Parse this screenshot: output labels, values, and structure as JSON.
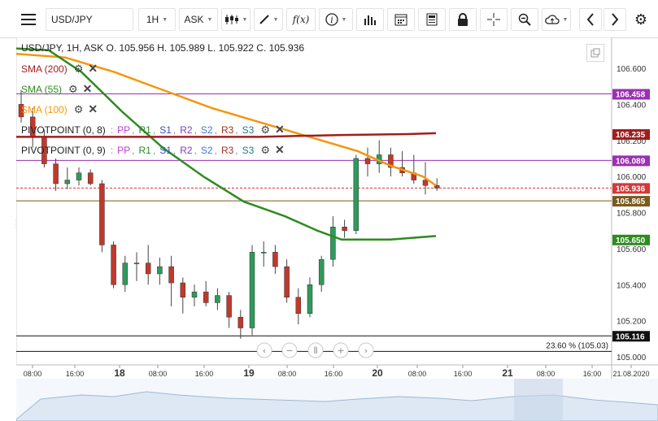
{
  "toolbar": {
    "symbol": "USD/JPY",
    "timeframe": "1H",
    "price_type": "ASK",
    "function_label": "f(x)",
    "icons": [
      "menu-icon",
      "chart-type-icon",
      "draw-icon",
      "indicator-icon",
      "info-icon",
      "volume-icon",
      "calendar-icon",
      "calculator-icon",
      "lock-icon",
      "crosshair-icon",
      "zoom-icon",
      "cloud-upload-icon",
      "arrow-left-icon",
      "arrow-right-icon",
      "gear-icon"
    ]
  },
  "ohlc": "USD/JPY, 1H, ASK   O. 105.956 H. 105.989 L. 105.922 C. 105.936",
  "indicators": [
    {
      "label": "SMA (200)",
      "color": "#a11d1d"
    },
    {
      "label": "SMA (55)",
      "color": "#2e8b1e"
    },
    {
      "label": "SMA (100)",
      "color": "#f4960c"
    }
  ],
  "pivots": [
    {
      "label": "PIVOTPOINT (0, 8)",
      "items": [
        "PP",
        "R1",
        "S1",
        "R2",
        "S2",
        "R3",
        "S3"
      ]
    },
    {
      "label": "PIVOTPOINT (0, 9)",
      "items": [
        "PP",
        "R1",
        "S1",
        "R2",
        "S2",
        "R3",
        "S3"
      ]
    }
  ],
  "pivot_colors": [
    "#c03dd1",
    "#2a8a2a",
    "#3a4fc9",
    "#7d3fc7",
    "#3d7ad1",
    "#a1331f",
    "#237b8c"
  ],
  "y_axis": {
    "ticks": [
      "106.600",
      "106.400",
      "106.200",
      "106.000",
      "105.800",
      "105.600",
      "105.400",
      "105.200",
      "105.000"
    ]
  },
  "x_axis": {
    "ticks": [
      "08:00",
      "16:00",
      "18",
      "08:00",
      "16:00",
      "19",
      "08:00",
      "16:00",
      "20",
      "08:00",
      "16:00",
      "21",
      "08:00",
      "16:00",
      "21.08.2020"
    ]
  },
  "price_tags": [
    {
      "value": "106.458",
      "bg": "#9b2fb3"
    },
    {
      "value": "106.235",
      "bg": "#a11d1d"
    },
    {
      "value": "106.089",
      "bg": "#9b2fb3"
    },
    {
      "value": "105.936",
      "bg": "#d93636"
    },
    {
      "value": "105.865",
      "bg": "#7a5a1e"
    },
    {
      "value": "105.650",
      "bg": "#2e8b1e"
    },
    {
      "value": "105.116",
      "bg": "#111111"
    }
  ],
  "fib_label": "23.60 % (105.03)",
  "nav_icons": [
    "scroll-left-icon",
    "zoom-out-icon",
    "reset-zoom-icon",
    "zoom-in-icon",
    "scroll-right-icon"
  ],
  "chart_data": {
    "type": "candlestick",
    "ylim": [
      105.0,
      106.7
    ],
    "candles_close_approx": [
      106.33,
      106.22,
      106.07,
      105.96,
      105.98,
      106.02,
      105.96,
      105.62,
      105.4,
      105.52,
      105.52,
      105.46,
      105.5,
      105.41,
      105.33,
      105.36,
      105.3,
      105.34,
      105.22,
      105.16,
      105.58,
      105.58,
      105.5,
      105.33,
      105.24,
      105.4,
      105.54,
      105.72,
      105.7,
      106.1,
      106.07,
      106.12,
      106.05,
      106.02,
      105.98,
      105.95,
      105.936
    ],
    "horizontal_levels": [
      106.458,
      106.235,
      106.089,
      105.936,
      105.865,
      105.65,
      105.116,
      105.03
    ]
  }
}
